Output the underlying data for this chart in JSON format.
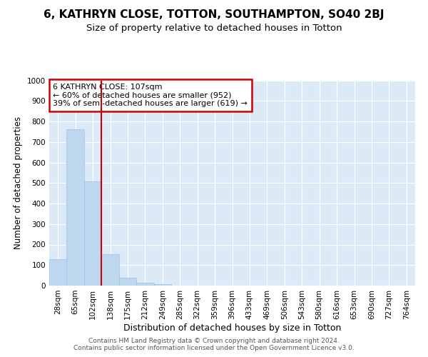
{
  "title1": "6, KATHRYN CLOSE, TOTTON, SOUTHAMPTON, SO40 2BJ",
  "title2": "Size of property relative to detached houses in Totton",
  "xlabel": "Distribution of detached houses by size in Totton",
  "ylabel": "Number of detached properties",
  "bar_labels": [
    "28sqm",
    "65sqm",
    "102sqm",
    "138sqm",
    "175sqm",
    "212sqm",
    "249sqm",
    "285sqm",
    "322sqm",
    "359sqm",
    "396sqm",
    "433sqm",
    "469sqm",
    "506sqm",
    "543sqm",
    "580sqm",
    "616sqm",
    "653sqm",
    "690sqm",
    "727sqm",
    "764sqm"
  ],
  "bar_values": [
    128,
    762,
    507,
    152,
    40,
    13,
    6,
    0,
    0,
    0,
    0,
    0,
    0,
    0,
    0,
    0,
    0,
    0,
    0,
    0,
    0
  ],
  "bar_color": "#bdd7ee",
  "bar_edge_color": "#9dc3e6",
  "vline_color": "#cc0000",
  "annotation_line1": "6 KATHRYN CLOSE: 107sqm",
  "annotation_line2": "← 60% of detached houses are smaller (952)",
  "annotation_line3": "39% of semi-detached houses are larger (619) →",
  "annotation_box_color": "#ffffff",
  "annotation_box_edge_color": "#cc0000",
  "ylim": [
    0,
    1000
  ],
  "yticks": [
    0,
    100,
    200,
    300,
    400,
    500,
    600,
    700,
    800,
    900,
    1000
  ],
  "fig_bg_color": "#ffffff",
  "plot_bg_color": "#dce9f7",
  "footer_text": "Contains HM Land Registry data © Crown copyright and database right 2024.\nContains public sector information licensed under the Open Government Licence v3.0.",
  "grid_color": "#ffffff",
  "title1_fontsize": 11,
  "title2_fontsize": 9.5,
  "xlabel_fontsize": 9,
  "ylabel_fontsize": 8.5,
  "tick_fontsize": 7.5,
  "ann_fontsize": 8,
  "footer_fontsize": 6.5
}
